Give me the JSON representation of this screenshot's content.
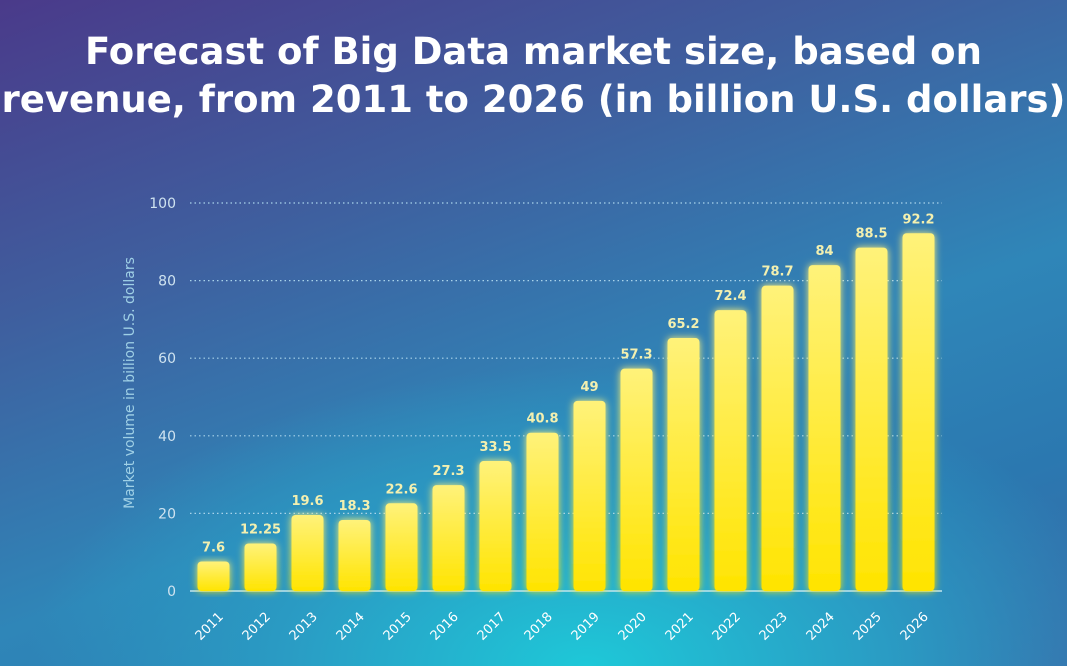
{
  "chart_data": {
    "type": "bar",
    "title": "Forecast of Big Data market size, based on revenue, from 2011 to 2026 (in billion U.S. dollars)",
    "xlabel": "",
    "ylabel": "Market volume in billion U.S. dollars",
    "ylim": [
      0,
      100
    ],
    "yticks": [
      0,
      20,
      40,
      60,
      80,
      100
    ],
    "grid": true,
    "categories": [
      "2011",
      "2012",
      "2013",
      "2014",
      "2015",
      "2016",
      "2017",
      "2018",
      "2019",
      "2020",
      "2021",
      "2022",
      "2023",
      "2024",
      "2025",
      "2026"
    ],
    "values": [
      7.6,
      12.25,
      19.6,
      18.3,
      22.6,
      27.3,
      33.5,
      40.8,
      49,
      57.3,
      65.2,
      72.4,
      78.7,
      84,
      88.5,
      92.2
    ],
    "value_labels": [
      "7.6",
      "12.25",
      "19.6",
      "18.3",
      "22.6",
      "27.3",
      "33.5",
      "40.8",
      "49",
      "57.3",
      "65.2",
      "72.4",
      "78.7",
      "84",
      "88.5",
      "92.2"
    ],
    "colors": {
      "bar": "#ffe600",
      "bar_top": "#fff176",
      "value_label": "#f3f0b0"
    }
  }
}
